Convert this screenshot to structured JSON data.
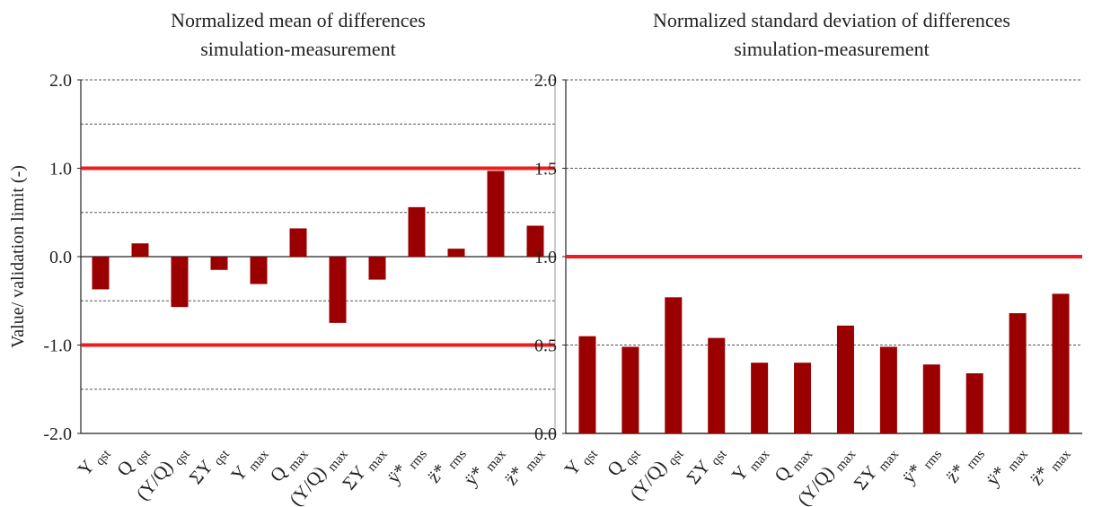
{
  "chart_data": [
    {
      "type": "bar",
      "title": [
        "Normalized mean of differences",
        "simulation-measurement"
      ],
      "y_label": "Value/ validation limit (-)",
      "categories": [
        "Y qst",
        "Q qst",
        "(Y/Q) qst",
        "ΣY qst",
        "Y max",
        "Q max",
        "(Y/Q) max",
        "ΣY max",
        "ÿ* rms",
        "z̈* rms",
        "ÿ* max",
        "z̈* max"
      ],
      "values": [
        -0.37,
        0.15,
        -0.57,
        -0.15,
        -0.31,
        0.32,
        -0.75,
        -0.26,
        0.56,
        0.09,
        0.97,
        0.35
      ],
      "color": "#9b0000",
      "ylim": [
        -2,
        2
      ],
      "yticks": [
        {
          "value": -2,
          "label": "-2.0"
        },
        {
          "value": -1,
          "label": "-1.0"
        },
        {
          "value": 0,
          "label": "0.0"
        },
        {
          "value": 1,
          "label": "1.0"
        },
        {
          "value": 2,
          "label": "2.0"
        }
      ],
      "grid_lines": [
        -1.5,
        -1,
        -0.5,
        0.5,
        1,
        1.5,
        2
      ],
      "reference_lines": [
        1,
        -1
      ],
      "reference_color": "#ee1c1c"
    },
    {
      "type": "bar",
      "title": [
        "Normalized standard deviation of differences",
        "simulation-measurement"
      ],
      "categories": [
        "Y qst",
        "Q qst",
        "(Y/Q) qst",
        "ΣY qst",
        "Y max",
        "Q max",
        "(Y/Q) max",
        "ΣY max",
        "ÿ* rms",
        "z̈* rms",
        "ÿ* max",
        "z̈* max"
      ],
      "values": [
        0.55,
        0.49,
        0.77,
        0.54,
        0.4,
        0.4,
        0.61,
        0.49,
        0.39,
        0.34,
        0.68,
        0.79
      ],
      "color": "#9b0000",
      "ylim": [
        0,
        2
      ],
      "yticks": [
        {
          "value": 0,
          "label": "0.0"
        },
        {
          "value": 0.5,
          "label": "0.5"
        },
        {
          "value": 1,
          "label": "1.0"
        },
        {
          "value": 1.5,
          "label": "1.5"
        },
        {
          "value": 2,
          "label": "2.0"
        }
      ],
      "grid_lines": [
        0.5,
        1,
        1.5,
        2
      ],
      "reference_lines": [
        1
      ],
      "reference_color": "#ee1c1c"
    }
  ]
}
